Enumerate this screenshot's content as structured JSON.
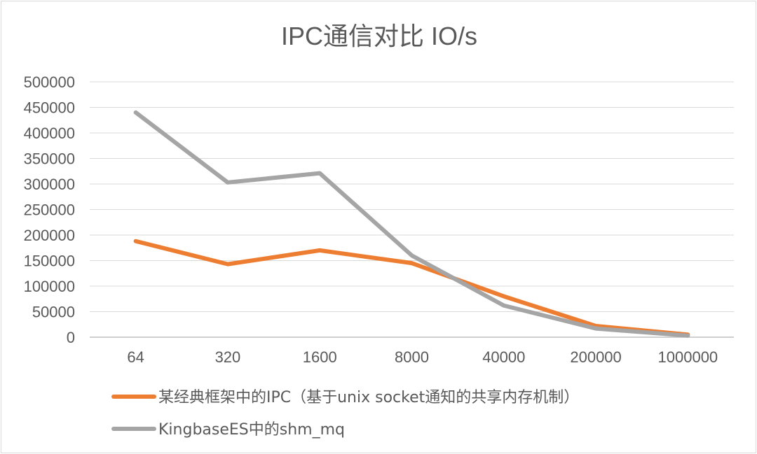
{
  "chart_data": {
    "type": "line",
    "title": "IPC通信对比 IO/s",
    "xlabel": "",
    "ylabel": "",
    "categories": [
      "64",
      "320",
      "1600",
      "8000",
      "40000",
      "200000",
      "1000000"
    ],
    "ylim": [
      0,
      500000
    ],
    "yticks": [
      "0",
      "50000",
      "100000",
      "150000",
      "200000",
      "250000",
      "300000",
      "350000",
      "400000",
      "450000",
      "500000"
    ],
    "grid": true,
    "legend_position": "bottom",
    "series": [
      {
        "name": "某经典框架中的IPC（基于unix socket通知的共享内存机制）",
        "color": "#ed7d31",
        "values": [
          188000,
          143000,
          170000,
          145000,
          80000,
          22000,
          5000
        ]
      },
      {
        "name": "KingbaseES中的shm_mq",
        "color": "#a5a5a5",
        "values": [
          440000,
          303000,
          321000,
          160000,
          62000,
          17000,
          3000
        ]
      }
    ]
  }
}
